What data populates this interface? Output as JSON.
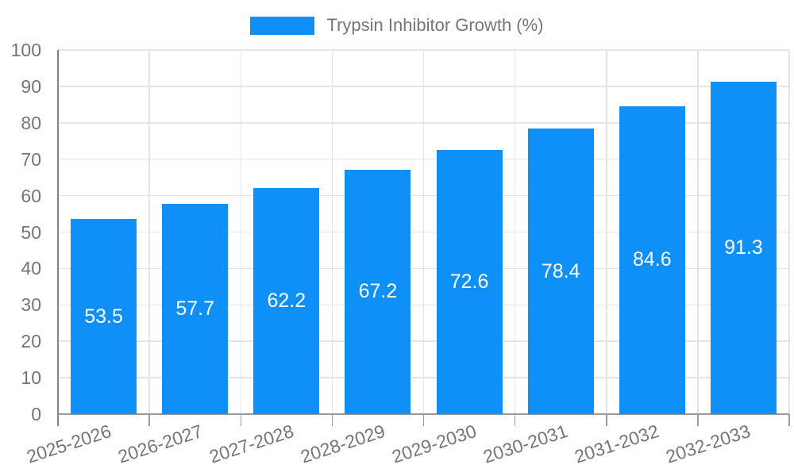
{
  "chart_data": {
    "type": "bar",
    "title": "Trypsin Inhibitor Growth (%)",
    "categories": [
      "2025-2026",
      "2026-2027",
      "2027-2028",
      "2028-2029",
      "2029-2030",
      "2030-2031",
      "2031-2032",
      "2032-2033"
    ],
    "values": [
      53.5,
      57.7,
      62.2,
      67.2,
      72.6,
      78.4,
      84.6,
      91.3
    ],
    "value_labels": [
      "53.5",
      "57.7",
      "62.2",
      "67.2",
      "72.6",
      "78.4",
      "84.6",
      "91.3"
    ],
    "xlabel": "",
    "ylabel": "",
    "ylim": [
      0,
      100
    ],
    "yticks": [
      0,
      10,
      20,
      30,
      40,
      50,
      60,
      70,
      80,
      90,
      100
    ],
    "grid": "horizontal lines at each y tick and vertical lines at category boundaries",
    "legend_position": "top-center",
    "legend_entries": [
      "Trypsin Inhibitor Growth (%)"
    ],
    "colors": {
      "bar": "#0e90f8",
      "bar_value_text": "#ffffff",
      "grid_line": "#e4e4e4",
      "y_axis_line": "#848484",
      "x_baseline": "#9a9a9a",
      "tick_label": "#757575",
      "legend_text": "#757575",
      "background": "#ffffff"
    }
  }
}
